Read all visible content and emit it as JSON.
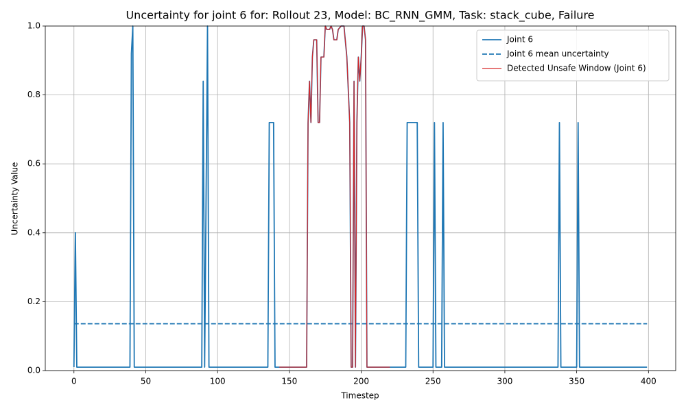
{
  "chart_data": {
    "type": "line",
    "title": "Uncertainty for joint 6 for: Rollout 23, Model: BC_RNN_GMM, Task: stack_cube, Failure",
    "x_label": "Timestep",
    "y_label": "Uncertainty Value",
    "x": [
      0,
      1,
      2,
      39,
      40,
      41,
      42,
      89,
      90,
      91,
      92,
      93,
      94,
      135,
      136,
      139,
      140,
      143,
      162,
      163,
      164,
      165,
      166,
      167,
      169,
      170,
      171,
      172,
      174,
      175,
      176,
      178,
      179,
      180,
      181,
      183,
      184,
      186,
      188,
      190,
      192,
      193,
      194,
      195,
      196,
      197,
      198,
      199,
      200,
      201,
      202,
      203,
      204,
      220,
      231,
      232,
      239,
      240,
      250,
      251,
      252,
      256,
      257,
      258,
      337,
      338,
      339,
      350,
      351,
      352,
      399
    ],
    "series": [
      {
        "name": "Joint 6",
        "color": "#1f77b4",
        "linestyle": "solid",
        "linewidth": 1.8,
        "values": [
          0.01,
          0.4,
          0.01,
          0.01,
          0.92,
          1.0,
          0.01,
          0.01,
          0.84,
          0.01,
          0.5,
          1.0,
          0.01,
          0.01,
          0.72,
          0.72,
          0.01,
          0.01,
          0.01,
          0.72,
          0.84,
          0.72,
          0.91,
          0.96,
          0.96,
          0.72,
          0.72,
          0.91,
          0.91,
          1.0,
          0.99,
          0.99,
          1.0,
          0.99,
          0.96,
          0.96,
          0.99,
          1.0,
          1.0,
          0.91,
          0.72,
          0.01,
          0.01,
          0.84,
          0.01,
          0.72,
          0.91,
          0.84,
          0.91,
          1.0,
          1.0,
          0.96,
          0.01,
          0.01,
          0.01,
          0.72,
          0.72,
          0.01,
          0.01,
          0.72,
          0.01,
          0.01,
          0.72,
          0.01,
          0.01,
          0.72,
          0.01,
          0.01,
          0.72,
          0.01,
          0.01
        ]
      },
      {
        "name": "Joint 6 mean uncertainty",
        "color": "#1f77b4",
        "linestyle": "dashed",
        "linewidth": 1.8,
        "values": [
          0.136,
          0.136,
          0.136,
          0.136,
          0.136,
          0.136,
          0.136,
          0.136,
          0.136,
          0.136,
          0.136,
          0.136,
          0.136,
          0.136,
          0.136,
          0.136,
          0.136,
          0.136,
          0.136,
          0.136,
          0.136,
          0.136,
          0.136,
          0.136,
          0.136,
          0.136,
          0.136,
          0.136,
          0.136,
          0.136,
          0.136,
          0.136,
          0.136,
          0.136,
          0.136,
          0.136,
          0.136,
          0.136,
          0.136,
          0.136,
          0.136,
          0.136,
          0.136,
          0.136,
          0.136,
          0.136,
          0.136,
          0.136,
          0.136,
          0.136,
          0.136,
          0.136,
          0.136,
          0.136,
          0.136,
          0.136,
          0.136,
          0.136,
          0.136,
          0.136,
          0.136,
          0.136,
          0.136,
          0.136,
          0.136,
          0.136,
          0.136,
          0.136,
          0.136,
          0.136,
          0.136
        ]
      },
      {
        "name": "Detected Unsafe Window (Joint 6)",
        "color": "#d62728",
        "linestyle": "solid",
        "linewidth": 1.2,
        "values": [
          null,
          null,
          null,
          null,
          null,
          null,
          null,
          null,
          null,
          null,
          null,
          null,
          null,
          null,
          null,
          null,
          null,
          0.01,
          0.01,
          0.72,
          0.84,
          0.72,
          0.91,
          0.96,
          0.96,
          0.72,
          0.72,
          0.91,
          0.91,
          1.0,
          0.99,
          0.99,
          1.0,
          0.99,
          0.96,
          0.96,
          0.99,
          1.0,
          1.0,
          0.91,
          0.72,
          0.01,
          0.01,
          0.84,
          0.01,
          0.72,
          0.91,
          0.84,
          0.91,
          1.0,
          1.0,
          0.96,
          0.01,
          0.01,
          null,
          null,
          null,
          null,
          null,
          null,
          null,
          null,
          null,
          null,
          null,
          null,
          null,
          null,
          null,
          null,
          null
        ]
      }
    ],
    "xlim": [
      -19.95,
      418.95
    ],
    "ylim": [
      0,
      1
    ],
    "xticks": [
      0,
      50,
      100,
      150,
      200,
      250,
      300,
      350,
      400
    ],
    "yticks": [
      {
        "value": 0,
        "label": "0.0"
      },
      0.2,
      0.4,
      0.6,
      0.8,
      {
        "value": 1,
        "label": "1.0"
      }
    ],
    "grid": true,
    "legend": "upper right"
  }
}
